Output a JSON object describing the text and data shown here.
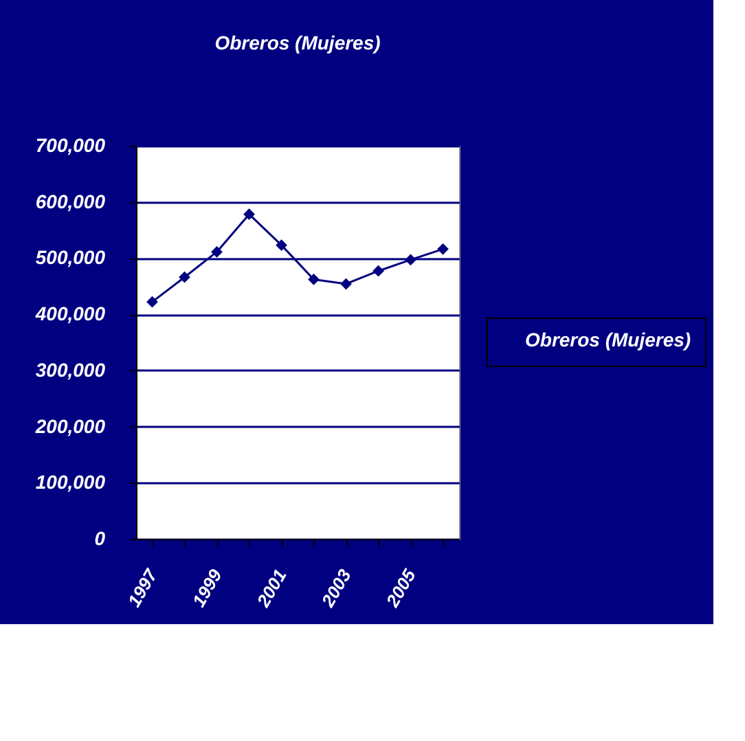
{
  "chart_data": {
    "type": "line",
    "title": "Obreros (Mujeres)",
    "categories": [
      "1997",
      null,
      "1999",
      null,
      "2001",
      null,
      "2003",
      null,
      "2005",
      null
    ],
    "series": [
      {
        "name": "Obreros (Mujeres)",
        "color": "#000080",
        "values": [
          422000,
          466000,
          511000,
          578000,
          523000,
          462000,
          454000,
          477000,
          497000,
          516000
        ]
      }
    ],
    "ylim": [
      0,
      700000
    ],
    "yticks": [
      0,
      {
        "value": 100000,
        "label": "100,000"
      },
      {
        "value": 200000,
        "label": "200,000"
      },
      {
        "value": 300000,
        "label": "300,000"
      },
      {
        "value": 400000,
        "label": "400,000"
      },
      {
        "value": 500000,
        "label": "500,000"
      },
      {
        "value": 600000,
        "label": "600,000"
      },
      {
        "value": 700000,
        "label": "700,000"
      }
    ],
    "grid": "y",
    "legend": "right",
    "marker": "diamond",
    "line_style": "solid"
  }
}
